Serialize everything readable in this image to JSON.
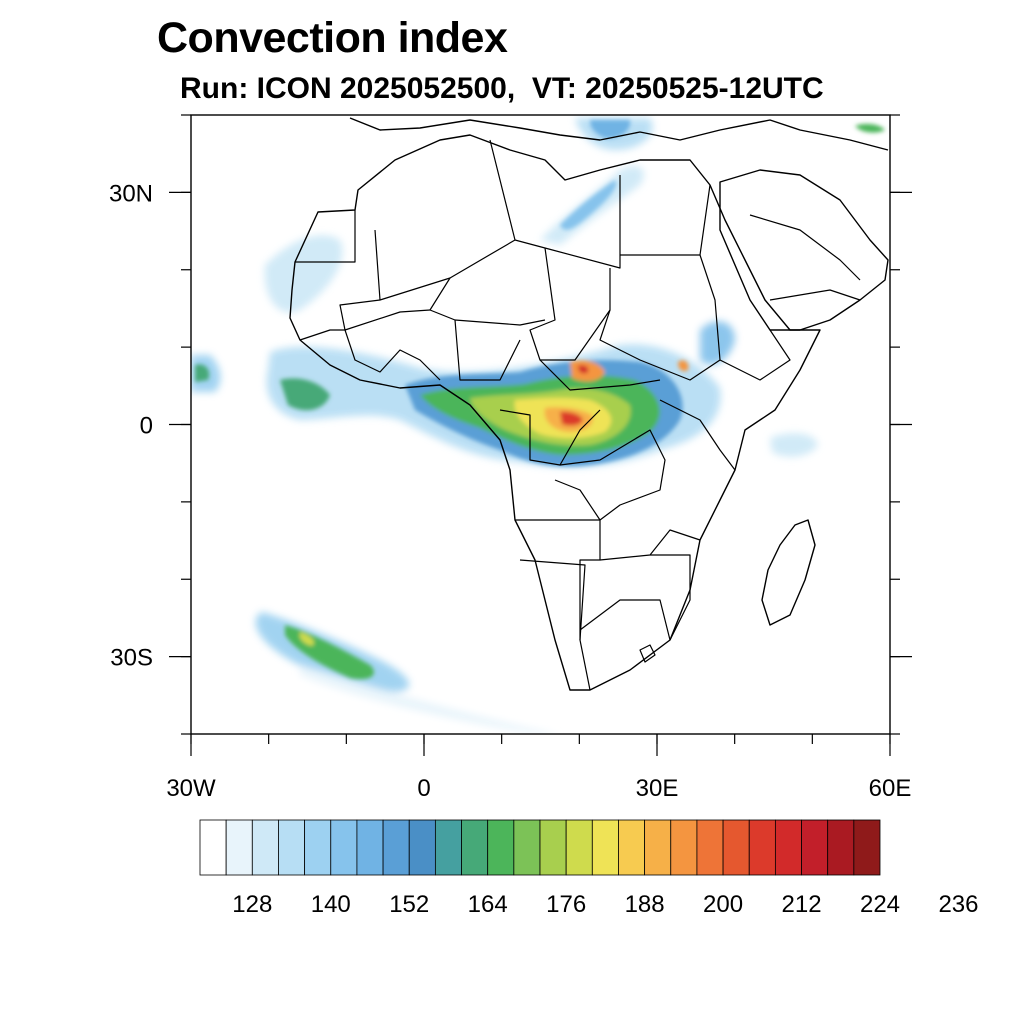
{
  "title": "Convection index",
  "subtitle": "Run: ICON 2025052500,  VT: 20250525-12UTC",
  "map": {
    "lon_range": [
      -30,
      60
    ],
    "lat_range": [
      -40,
      40
    ],
    "lat_ticks": [
      {
        "value": 30,
        "label": "30N"
      },
      {
        "value": 0,
        "label": "0"
      },
      {
        "value": -30,
        "label": "30S"
      }
    ],
    "lon_ticks": [
      {
        "value": -30,
        "label": "30W"
      },
      {
        "value": 0,
        "label": "0"
      },
      {
        "value": 30,
        "label": "30E"
      },
      {
        "value": 60,
        "label": "60E"
      }
    ]
  },
  "colorbar": {
    "colors": [
      "#ffffff",
      "#e8f4fb",
      "#cfe9f7",
      "#b7def4",
      "#9dd1f1",
      "#86c3ec",
      "#70b3e4",
      "#5a9fd6",
      "#4a8fc6",
      "#45a0a0",
      "#46a978",
      "#4cb55a",
      "#7cc257",
      "#a8cf4e",
      "#cfdb4d",
      "#efe356",
      "#f7cb50",
      "#f6b048",
      "#f49540",
      "#ee7437",
      "#e5582f",
      "#dc3a2b",
      "#d22a2a",
      "#c21f2a",
      "#aa1a22",
      "#8f1a1a"
    ],
    "labels": [
      "128",
      "140",
      "152",
      "164",
      "176",
      "188",
      "200",
      "212",
      "224",
      "236"
    ]
  },
  "layers": {
    "coastline": "land-outline",
    "borders": "country-borders",
    "field": "convection-index-shading"
  }
}
